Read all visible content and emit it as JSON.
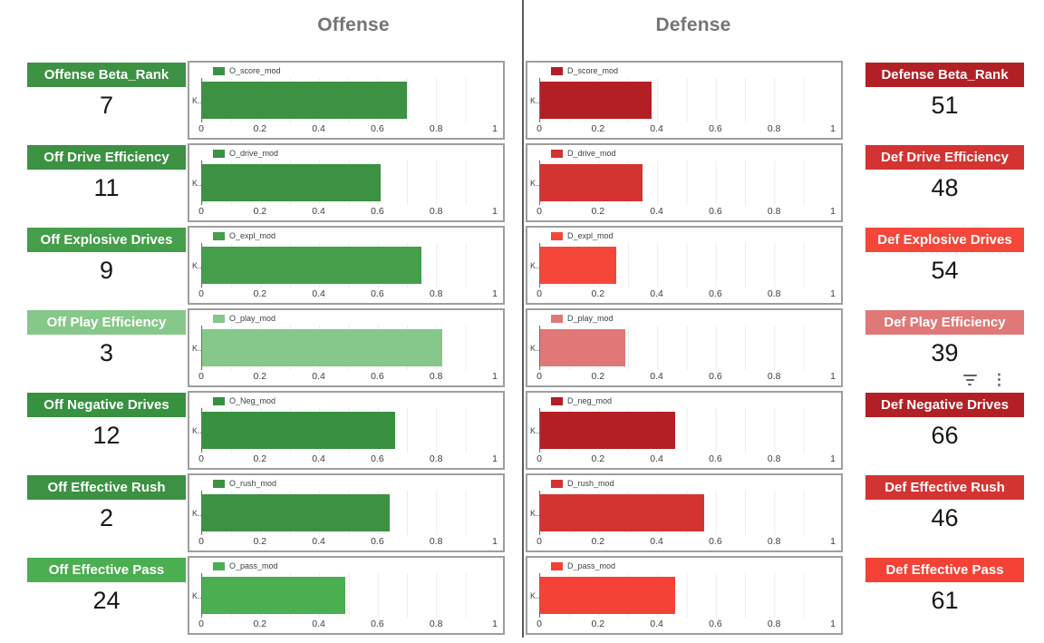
{
  "header": {
    "offense_title": "Offense",
    "defense_title": "Defense"
  },
  "axis": {
    "ticks": [
      "0",
      "0.2",
      "0.4",
      "0.6",
      "0.8",
      "1"
    ],
    "y_label": "K..."
  },
  "icons": {
    "filter": "filter-list",
    "more_glyph": "⋮"
  },
  "rows": [
    {
      "left": {
        "label": "Offense Beta_Rank",
        "rank": 7,
        "legend": "O_score_mod",
        "value": 0.7,
        "color": "#3c9142"
      },
      "right": {
        "label": "Defense Beta_Rank",
        "rank": 51,
        "legend": "D_score_mod",
        "value": 0.38,
        "color": "#b22025"
      }
    },
    {
      "left": {
        "label": "Off Drive Efficiency",
        "rank": 11,
        "legend": "O_drive_mod",
        "value": 0.61,
        "color": "#3c9142"
      },
      "right": {
        "label": "Def Drive Efficiency",
        "rank": 48,
        "legend": "D_drive_mod",
        "value": 0.35,
        "color": "#d33431"
      }
    },
    {
      "left": {
        "label": "Off Explosive Drives",
        "rank": 9,
        "legend": "O_expl_mod",
        "value": 0.75,
        "color": "#449e4a"
      },
      "right": {
        "label": "Def Explosive Drives",
        "rank": 54,
        "legend": "D_expl_mod",
        "value": 0.26,
        "color": "#f4473a"
      }
    },
    {
      "left": {
        "label": "Off Play Efficiency",
        "rank": 3,
        "legend": "O_play_mod",
        "value": 0.82,
        "color": "#85c889"
      },
      "right": {
        "label": "Def Play Efficiency",
        "rank": 39,
        "legend": "D_play_mod",
        "value": 0.29,
        "color": "#e07878"
      }
    },
    {
      "left": {
        "label": "Off Negative Drives",
        "rank": 12,
        "legend": "O_Neg_mod",
        "value": 0.66,
        "color": "#37913e"
      },
      "right": {
        "label": "Def Negative Drives",
        "rank": 66,
        "legend": "D_neg_mod",
        "value": 0.46,
        "color": "#b22025"
      }
    },
    {
      "left": {
        "label": "Off Effective Rush",
        "rank": 2,
        "legend": "O_rush_mod",
        "value": 0.64,
        "color": "#3c9142"
      },
      "right": {
        "label": "Def Effective Rush",
        "rank": 46,
        "legend": "D_rush_mod",
        "value": 0.56,
        "color": "#d33431"
      }
    },
    {
      "left": {
        "label": "Off Effective Pass",
        "rank": 24,
        "legend": "O_pass_mod",
        "value": 0.49,
        "color": "#4bae51"
      },
      "right": {
        "label": "Def Effective Pass",
        "rank": 61,
        "legend": "D_pass_mod",
        "value": 0.46,
        "color": "#f44336"
      }
    }
  ],
  "chart_data": [
    {
      "type": "bar",
      "title": "Offense",
      "orientation": "horizontal",
      "categories": [
        "O_score_mod",
        "O_drive_mod",
        "O_expl_mod",
        "O_play_mod",
        "O_Neg_mod",
        "O_rush_mod",
        "O_pass_mod"
      ],
      "values": [
        0.7,
        0.61,
        0.75,
        0.82,
        0.66,
        0.64,
        0.49
      ],
      "metric_labels": [
        "Offense Beta_Rank",
        "Off Drive Efficiency",
        "Off Explosive Drives",
        "Off Play Efficiency",
        "Off Negative Drives",
        "Off Effective Rush",
        "Off Effective Pass"
      ],
      "ranks": [
        7,
        11,
        9,
        3,
        12,
        2,
        24
      ],
      "y_category": "K...",
      "xlim": [
        0,
        1
      ],
      "x_ticks": [
        0,
        0.2,
        0.4,
        0.6,
        0.8,
        1
      ],
      "grid": true,
      "legend_position": "top-left"
    },
    {
      "type": "bar",
      "title": "Defense",
      "orientation": "horizontal",
      "categories": [
        "D_score_mod",
        "D_drive_mod",
        "D_expl_mod",
        "D_play_mod",
        "D_neg_mod",
        "D_rush_mod",
        "D_pass_mod"
      ],
      "values": [
        0.38,
        0.35,
        0.26,
        0.29,
        0.46,
        0.56,
        0.46
      ],
      "metric_labels": [
        "Defense Beta_Rank",
        "Def Drive Efficiency",
        "Def Explosive Drives",
        "Def Play Efficiency",
        "Def Negative Drives",
        "Def Effective Rush",
        "Def Effective Pass"
      ],
      "ranks": [
        51,
        48,
        54,
        39,
        66,
        46,
        61
      ],
      "y_category": "K...",
      "xlim": [
        0,
        1
      ],
      "x_ticks": [
        0,
        0.2,
        0.4,
        0.6,
        0.8,
        1
      ],
      "grid": true,
      "legend_position": "top-left"
    }
  ]
}
